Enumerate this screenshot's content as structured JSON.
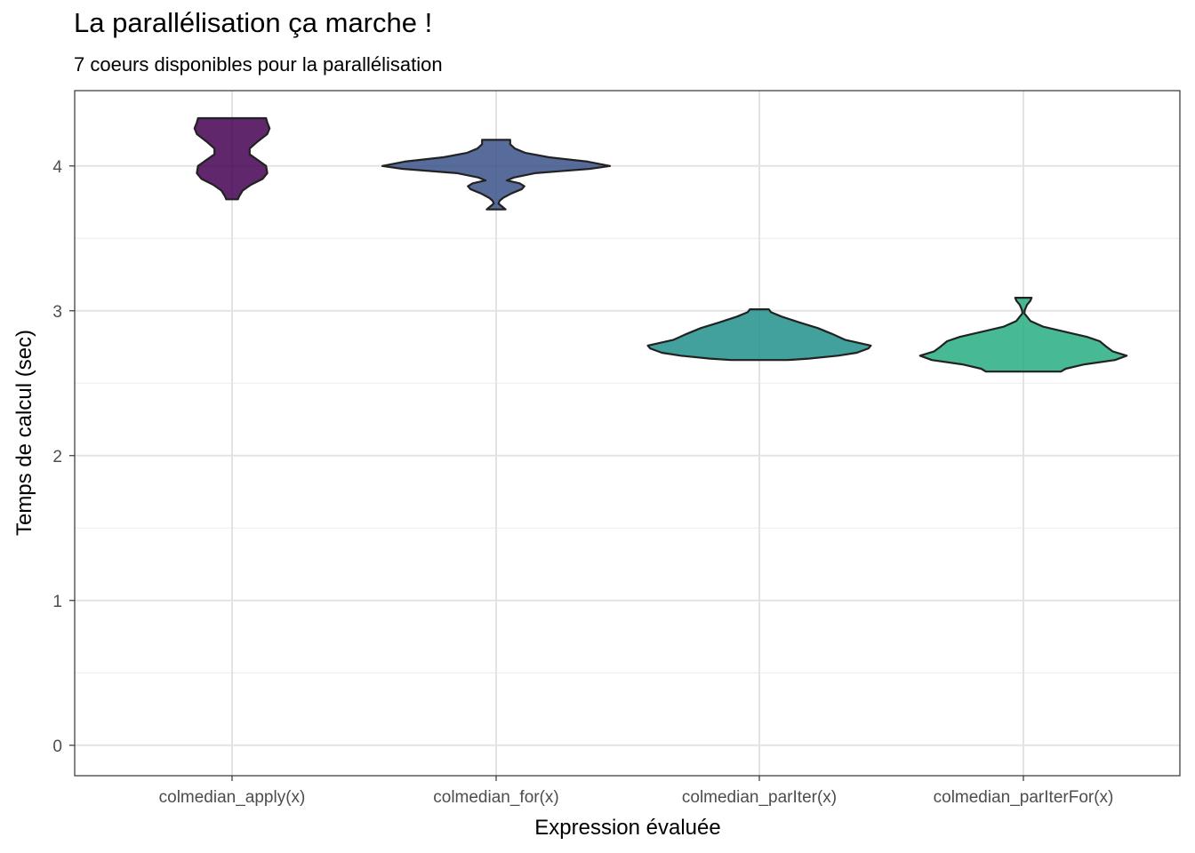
{
  "chart_data": {
    "type": "violin",
    "title": "La parallélisation ça marche !",
    "subtitle": "7 coeurs disponibles pour la parallélisation",
    "xlabel": "Expression évaluée",
    "ylabel": "Temps de calcul (sec)",
    "categories": [
      "colmedian_apply(x)",
      "colmedian_for(x)",
      "colmedian_parIter(x)",
      "colmedian_parIterFor(x)"
    ],
    "ylim": [
      -0.21,
      4.52
    ],
    "yticks": [
      0,
      1,
      2,
      3,
      4
    ],
    "grid": true,
    "legend": "none",
    "violins": [
      {
        "category": "colmedian_apply(x)",
        "color": "#440154",
        "profile": [
          [
            4.33,
            0.29
          ],
          [
            4.3,
            0.3
          ],
          [
            4.26,
            0.32
          ],
          [
            4.22,
            0.3
          ],
          [
            4.17,
            0.22
          ],
          [
            4.12,
            0.15
          ],
          [
            4.08,
            0.15
          ],
          [
            4.04,
            0.22
          ],
          [
            4.0,
            0.29
          ],
          [
            3.95,
            0.3
          ],
          [
            3.91,
            0.26
          ],
          [
            3.87,
            0.16
          ],
          [
            3.83,
            0.09
          ],
          [
            3.79,
            0.06
          ],
          [
            3.77,
            0.05
          ]
        ]
      },
      {
        "category": "colmedian_for(x)",
        "color": "#3B528B",
        "profile": [
          [
            4.18,
            0.12
          ],
          [
            4.15,
            0.12
          ],
          [
            4.12,
            0.16
          ],
          [
            4.09,
            0.25
          ],
          [
            4.06,
            0.45
          ],
          [
            4.03,
            0.78
          ],
          [
            4.0,
            0.97
          ],
          [
            3.98,
            0.8
          ],
          [
            3.95,
            0.33
          ],
          [
            3.92,
            0.15
          ],
          [
            3.9,
            0.09
          ],
          [
            3.88,
            0.2
          ],
          [
            3.86,
            0.24
          ],
          [
            3.84,
            0.22
          ],
          [
            3.81,
            0.13
          ],
          [
            3.78,
            0.06
          ],
          [
            3.76,
            0.03
          ],
          [
            3.74,
            0.02
          ],
          [
            3.72,
            0.05
          ],
          [
            3.7,
            0.08
          ]
        ]
      },
      {
        "category": "colmedian_parIter(x)",
        "color": "#21908C",
        "profile": [
          [
            3.01,
            0.08
          ],
          [
            2.99,
            0.1
          ],
          [
            2.96,
            0.19
          ],
          [
            2.92,
            0.34
          ],
          [
            2.88,
            0.5
          ],
          [
            2.84,
            0.62
          ],
          [
            2.8,
            0.73
          ],
          [
            2.76,
            0.95
          ],
          [
            2.74,
            0.93
          ],
          [
            2.71,
            0.83
          ],
          [
            2.69,
            0.67
          ],
          [
            2.67,
            0.42
          ],
          [
            2.66,
            0.24
          ]
        ]
      },
      {
        "category": "colmedian_parIterFor(x)",
        "color": "#27AD81",
        "profile": [
          [
            3.09,
            0.07
          ],
          [
            3.07,
            0.06
          ],
          [
            3.04,
            0.03
          ],
          [
            3.02,
            0.02
          ],
          [
            3.0,
            0.01
          ],
          [
            2.98,
            0.01
          ],
          [
            2.96,
            0.03
          ],
          [
            2.93,
            0.06
          ],
          [
            2.89,
            0.17
          ],
          [
            2.85,
            0.38
          ],
          [
            2.82,
            0.54
          ],
          [
            2.79,
            0.65
          ],
          [
            2.75,
            0.71
          ],
          [
            2.72,
            0.76
          ],
          [
            2.69,
            0.88
          ],
          [
            2.66,
            0.78
          ],
          [
            2.63,
            0.52
          ],
          [
            2.6,
            0.36
          ],
          [
            2.58,
            0.32
          ]
        ]
      }
    ]
  }
}
